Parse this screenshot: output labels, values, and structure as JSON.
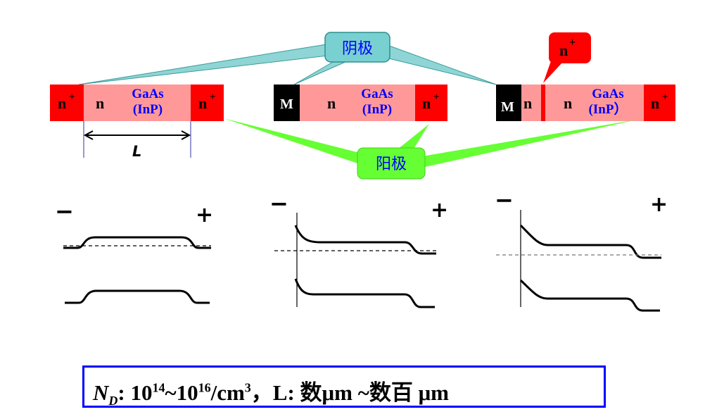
{
  "labels": {
    "cathode": "阴极",
    "anode": "阳极",
    "n_plus_callout": "n",
    "plus_sup": "+",
    "length": "L",
    "minus": "−",
    "plus": "+"
  },
  "devices": [
    {
      "left_contact": "n",
      "channel": "n",
      "material": "GaAs",
      "material_alt": "(InP)",
      "right_contact": "n"
    },
    {
      "left_contact": "M",
      "channel": "n",
      "material": "GaAs",
      "material_alt": "(InP)",
      "right_contact": "n"
    },
    {
      "left_contact": "M",
      "mid_layer": "n",
      "channel": "n",
      "material": "GaAs",
      "material_alt": "(InP）",
      "right_contact": "n"
    }
  ],
  "formula": {
    "nd": "N",
    "nd_sub": "D",
    "sep1": ":  10",
    "exp1": "14",
    "mid": "~10",
    "exp2": "16",
    "unit": "/cm",
    "unit_exp": "3",
    "rest": "，L:  数μm ~数百 μm"
  },
  "colors": {
    "contact_red": "#ff0000",
    "channel_pink": "#ff9999",
    "metal_black": "#000000",
    "cathode_callout": "#66cccc",
    "anode_callout": "#66ff33",
    "text_blue": "#0000ff",
    "box_border": "#0000ff"
  }
}
